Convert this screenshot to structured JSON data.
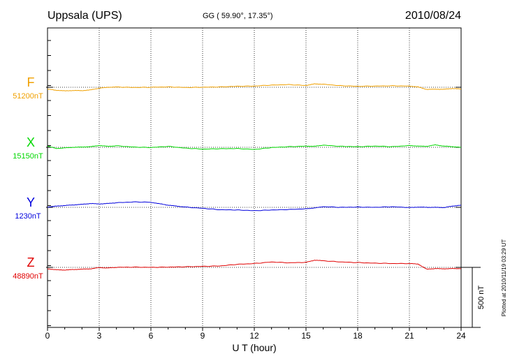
{
  "header": {
    "station": "Uppsala (UPS)",
    "coords": "GG ( 59.90°,  17.35°)",
    "date": "2010/08/24"
  },
  "footer": {
    "plotted": "Plotted at 2010/11/19 03:29 UT"
  },
  "chart_data": {
    "type": "line",
    "title": "Uppsala (UPS)",
    "xlabel": "U T (hour)",
    "xlim": [
      0,
      24
    ],
    "xticks": [
      0,
      3,
      6,
      9,
      12,
      15,
      18,
      21,
      24
    ],
    "xtick_labels": [
      "0",
      "3",
      "6",
      "9",
      "12",
      "15",
      "18",
      "21",
      "24"
    ],
    "scale_bar": {
      "value": 500,
      "label": "500 nT"
    },
    "grid": true,
    "series": [
      {
        "name": "F",
        "baseline_label": "51200nT",
        "color": "#f0a000",
        "baseline": 51200,
        "x": [
          0,
          0.5,
          1,
          1.5,
          2,
          2.5,
          3,
          3.5,
          4,
          5,
          6,
          7,
          8,
          9,
          10,
          11,
          12,
          13,
          14,
          15,
          15.5,
          16,
          17,
          18,
          19,
          20,
          21,
          21.5,
          22,
          22.5,
          23,
          23.5,
          24
        ],
        "y": [
          51185,
          51175,
          51170,
          51173,
          51172,
          51178,
          51192,
          51200,
          51202,
          51198,
          51200,
          51203,
          51198,
          51200,
          51203,
          51208,
          51210,
          51218,
          51222,
          51215,
          51228,
          51225,
          51213,
          51208,
          51210,
          51212,
          51210,
          51203,
          51182,
          51184,
          51183,
          51190,
          51185
        ]
      },
      {
        "name": "X",
        "baseline_label": "15150nT",
        "color": "#00d800",
        "baseline": 15150,
        "x": [
          0,
          0.5,
          1,
          1.5,
          2,
          2.5,
          3,
          3.5,
          4,
          5,
          6,
          7,
          8,
          9,
          10,
          11,
          12,
          13,
          14,
          15,
          15.5,
          16,
          17,
          18,
          19,
          20,
          21,
          21.5,
          22,
          22.5,
          23,
          23.5,
          24
        ],
        "y": [
          15160,
          15140,
          15145,
          15150,
          15152,
          15155,
          15165,
          15158,
          15162,
          15152,
          15148,
          15158,
          15143,
          15135,
          15138,
          15140,
          15132,
          15148,
          15155,
          15160,
          15158,
          15168,
          15158,
          15155,
          15160,
          15155,
          15165,
          15160,
          15158,
          15170,
          15160,
          15155,
          15150
        ]
      },
      {
        "name": "Y",
        "baseline_label": "1230nT",
        "color": "#0000dd",
        "baseline": 1230,
        "x": [
          0,
          0.5,
          1,
          1.5,
          2,
          2.5,
          3,
          3.5,
          4,
          5,
          6,
          6.5,
          7,
          7.5,
          8,
          9,
          10,
          11,
          12,
          13,
          14,
          15,
          15.5,
          16,
          17,
          18,
          19,
          20,
          21,
          21.5,
          22,
          22.5,
          23,
          23.5,
          24
        ],
        "y": [
          1232,
          1240,
          1245,
          1250,
          1255,
          1262,
          1258,
          1262,
          1268,
          1275,
          1272,
          1260,
          1248,
          1240,
          1232,
          1222,
          1210,
          1208,
          1202,
          1208,
          1212,
          1218,
          1225,
          1235,
          1230,
          1232,
          1230,
          1235,
          1228,
          1232,
          1230,
          1230,
          1228,
          1240,
          1248
        ]
      },
      {
        "name": "Z",
        "baseline_label": "48890nT",
        "color": "#e00000",
        "baseline": 48890,
        "x": [
          0,
          0.5,
          1,
          1.5,
          2,
          2.5,
          3,
          3.5,
          4,
          5,
          6,
          7,
          8,
          9,
          10,
          11,
          12,
          13,
          14,
          15,
          15.5,
          16,
          17,
          18,
          19,
          20,
          21,
          21.5,
          22,
          22.5,
          23,
          23.5,
          24
        ],
        "y": [
          48878,
          48870,
          48868,
          48872,
          48875,
          48878,
          48888,
          48885,
          48890,
          48892,
          48890,
          48892,
          48895,
          48898,
          48902,
          48915,
          48922,
          48935,
          48928,
          48932,
          48950,
          48945,
          48935,
          48930,
          48925,
          48922,
          48922,
          48918,
          48875,
          48880,
          48878,
          48880,
          48880
        ]
      }
    ]
  }
}
